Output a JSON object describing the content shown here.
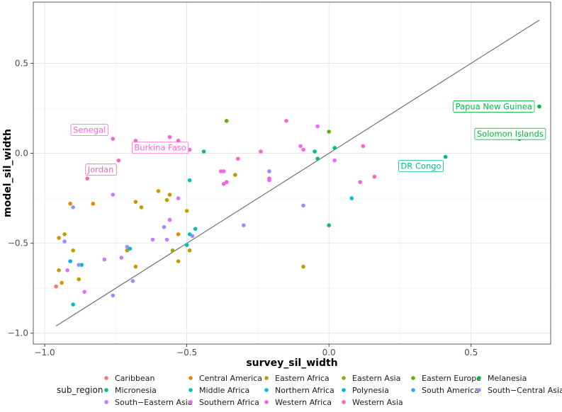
{
  "chart_data": {
    "type": "scatter",
    "title": "",
    "xlabel": "survey_sil_width",
    "ylabel": "model_sil_width",
    "xlim": [
      -1.04,
      0.78
    ],
    "ylim": [
      -1.06,
      0.84
    ],
    "x_ticks": [
      -1.0,
      -0.5,
      0.0,
      0.5
    ],
    "x_tick_labels": [
      "−1.0",
      "−0.5",
      "0.0",
      "0.5"
    ],
    "y_ticks": [
      -1.0,
      -0.5,
      0.0,
      0.5
    ],
    "y_tick_labels": [
      "−1.0",
      "−0.5",
      "0.0",
      "0.5"
    ],
    "grid": true,
    "reference_line": {
      "type": "identity",
      "from": -0.96,
      "to": 0.74,
      "color": "#636363"
    },
    "legend": {
      "title": "sub_region",
      "position": "bottom",
      "entries": [
        {
          "name": "Caribbean",
          "color": "#F8766D"
        },
        {
          "name": "Central America",
          "color": "#E48800"
        },
        {
          "name": "Eastern Africa",
          "color": "#C49A00"
        },
        {
          "name": "Eastern Asia",
          "color": "#99A800"
        },
        {
          "name": "Eastern Europe",
          "color": "#5EB300"
        },
        {
          "name": "Melanesia",
          "color": "#00BA38"
        },
        {
          "name": "Micronesia",
          "color": "#00BF7D"
        },
        {
          "name": "Middle Africa",
          "color": "#00C0AF"
        },
        {
          "name": "Northern Africa",
          "color": "#00BCD8"
        },
        {
          "name": "Polynesia",
          "color": "#00B0F6"
        },
        {
          "name": "South America",
          "color": "#35A2FF"
        },
        {
          "name": "South−Central Asia",
          "color": "#9590FF"
        },
        {
          "name": "South−Eastern Asia",
          "color": "#C77CFF"
        },
        {
          "name": "Southern Africa",
          "color": "#E76BF3"
        },
        {
          "name": "Western Africa",
          "color": "#FA62DB"
        },
        {
          "name": "Western Asia",
          "color": "#FF62BC"
        }
      ]
    },
    "series": [
      {
        "name": "Caribbean",
        "color": "#F8766D",
        "points": [
          [
            -0.96,
            -0.74
          ]
        ]
      },
      {
        "name": "Central America",
        "color": "#E48800",
        "points": [
          [
            -0.95,
            -0.47
          ],
          [
            -0.91,
            -0.28
          ],
          [
            -0.83,
            -0.28
          ],
          [
            -0.53,
            -0.45
          ]
        ]
      },
      {
        "name": "Eastern Africa",
        "color": "#C49A00",
        "points": [
          [
            -0.94,
            -0.72
          ],
          [
            -0.93,
            -0.45
          ],
          [
            -0.9,
            -0.54
          ],
          [
            -0.88,
            -0.7
          ],
          [
            -0.71,
            -0.54
          ],
          [
            -0.68,
            -0.63
          ],
          [
            -0.66,
            -0.3
          ],
          [
            -0.6,
            -0.21
          ],
          [
            -0.57,
            -0.26
          ],
          [
            -0.56,
            -0.23
          ],
          [
            -0.53,
            -0.6
          ],
          [
            -0.5,
            -0.32
          ],
          [
            -0.49,
            -0.54
          ],
          [
            -0.33,
            -0.12
          ],
          [
            -0.09,
            -0.63
          ],
          [
            -0.95,
            -0.65
          ],
          [
            -0.68,
            -0.27
          ]
        ]
      },
      {
        "name": "Eastern Asia",
        "color": "#99A800",
        "points": [
          [
            -0.55,
            -0.54
          ]
        ]
      },
      {
        "name": "Eastern Europe",
        "color": "#5EB300",
        "points": [
          [
            -0.36,
            0.18
          ],
          [
            0.0,
            0.12
          ]
        ]
      },
      {
        "name": "Melanesia",
        "color": "#00BA38",
        "points": [
          [
            0.74,
            0.26
          ],
          [
            0.67,
            0.08
          ]
        ]
      },
      {
        "name": "Micronesia",
        "color": "#00BF7D",
        "points": [
          [
            -0.44,
            0.01
          ],
          [
            -0.05,
            0.01
          ],
          [
            0.41,
            -0.02
          ],
          [
            -0.04,
            -0.03
          ],
          [
            0.0,
            -0.4
          ],
          [
            0.02,
            0.03
          ]
        ]
      },
      {
        "name": "Middle Africa",
        "color": "#00C0AF",
        "points": [
          [
            -0.9,
            -0.84
          ],
          [
            -0.87,
            -0.62
          ],
          [
            -0.49,
            -0.15
          ],
          [
            -0.47,
            -0.42
          ],
          [
            -0.5,
            -0.51
          ]
        ]
      },
      {
        "name": "Northern Africa",
        "color": "#00BCD8",
        "points": [
          [
            -0.7,
            -0.53
          ],
          [
            -0.49,
            -0.45
          ],
          [
            0.08,
            -0.25
          ]
        ]
      },
      {
        "name": "Polynesia",
        "color": "#00B0F6",
        "points": [
          [
            -0.91,
            -0.6
          ]
        ]
      },
      {
        "name": "South America",
        "color": "#35A2FF",
        "points": []
      },
      {
        "name": "South−Central Asia",
        "color": "#9590FF",
        "points": [
          [
            -0.93,
            -0.49
          ],
          [
            -0.9,
            -0.3
          ],
          [
            -0.88,
            -0.62
          ],
          [
            -0.76,
            -0.79
          ],
          [
            -0.71,
            -0.52
          ],
          [
            -0.69,
            -0.71
          ],
          [
            -0.58,
            -0.41
          ],
          [
            -0.48,
            -0.46
          ],
          [
            -0.3,
            -0.4
          ],
          [
            -0.21,
            -0.1
          ],
          [
            -0.09,
            -0.29
          ]
        ]
      },
      {
        "name": "South−Eastern Asia",
        "color": "#C77CFF",
        "points": [
          [
            -0.92,
            -0.65
          ],
          [
            -0.79,
            -0.59
          ],
          [
            -0.76,
            -0.23
          ],
          [
            -0.73,
            -0.58
          ],
          [
            -0.62,
            -0.48
          ],
          [
            -0.57,
            -0.48
          ],
          [
            -0.53,
            -0.25
          ]
        ]
      },
      {
        "name": "Southern Africa",
        "color": "#E76BF3",
        "points": [
          [
            -0.86,
            -0.77
          ],
          [
            -0.56,
            -0.37
          ],
          [
            -0.37,
            -0.1
          ],
          [
            -0.21,
            -0.15
          ],
          [
            -0.1,
            0.04
          ],
          [
            0.02,
            -0.04
          ],
          [
            -0.04,
            0.15
          ]
        ]
      },
      {
        "name": "Western Africa",
        "color": "#FA62DB",
        "points": [
          [
            -0.76,
            0.08
          ],
          [
            -0.68,
            0.07
          ],
          [
            -0.56,
            0.09
          ],
          [
            -0.53,
            0.07
          ],
          [
            -0.49,
            0.02
          ],
          [
            -0.38,
            -0.1
          ],
          [
            -0.36,
            -0.16
          ],
          [
            -0.32,
            -0.03
          ],
          [
            -0.24,
            0.01
          ],
          [
            -0.15,
            0.18
          ],
          [
            -0.09,
            0.02
          ],
          [
            0.11,
            -0.16
          ],
          [
            0.12,
            0.04
          ],
          [
            -0.37,
            -0.17
          ],
          [
            -0.21,
            -0.14
          ]
        ]
      },
      {
        "name": "Western Asia",
        "color": "#FF62BC",
        "points": [
          [
            -0.74,
            -0.04
          ],
          [
            -0.85,
            -0.14
          ],
          [
            0.16,
            -0.13
          ]
        ]
      }
    ],
    "annotations": [
      {
        "text": "Senegal",
        "x": -0.75,
        "y": 0.09,
        "color": "#FA62DB",
        "anchor": "left-above"
      },
      {
        "text": "Burkina Faso",
        "x": -0.68,
        "y": 0.07,
        "color": "#FA62DB",
        "anchor": "right-below"
      },
      {
        "text": "Jordan",
        "x": -0.74,
        "y": -0.04,
        "color": "#FF62BC",
        "anchor": "left-below"
      },
      {
        "text": "Papua New Guinea",
        "x": 0.74,
        "y": 0.26,
        "color": "#00BA38",
        "anchor": "left"
      },
      {
        "text": "Solomon Islands",
        "x": 0.67,
        "y": 0.08,
        "color": "#00BA38",
        "anchor": "right-above"
      },
      {
        "text": "DR Congo",
        "x": 0.41,
        "y": -0.02,
        "color": "#00BF7D",
        "anchor": "left-below"
      }
    ]
  }
}
